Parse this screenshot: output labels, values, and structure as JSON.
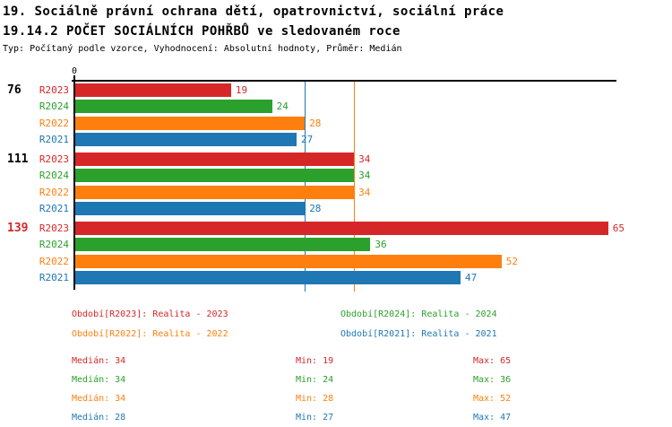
{
  "header": {
    "title_line1": "19. Sociálně právní ochrana dětí, opatrovnictví, sociální práce",
    "title_line2": "19.14.2 POČET SOCIÁLNÍCH POHŘBŮ ve sledovaném roce",
    "subtitle": "Typ: Počítaný podle vzorce, Vyhodnocení: Absolutní hodnoty, Průměr: Medián"
  },
  "colors": {
    "series": {
      "R2023": "#d62728",
      "R2024": "#2ca02c",
      "R2022": "#ff7f0e",
      "R2021": "#1f77b4"
    },
    "axis": "#000000",
    "background": "#ffffff"
  },
  "chart_data": {
    "type": "bar",
    "orientation": "horizontal-grouped",
    "title": "19.14.2 POČET SOCIÁLNÍCH POHŘBŮ ve sledovaném roce",
    "x_axis": {
      "zero_label": "0",
      "min": 0,
      "max": 66,
      "grid": false
    },
    "legend_position": "bottom",
    "value_labels": true,
    "series_order": [
      "R2023",
      "R2024",
      "R2022",
      "R2021"
    ],
    "groups": [
      {
        "group_label": "76",
        "group_label_color": "#000000",
        "bars": [
          {
            "series": "R2023",
            "value": 19
          },
          {
            "series": "R2024",
            "value": 24
          },
          {
            "series": "R2022",
            "value": 28
          },
          {
            "series": "R2021",
            "value": 27
          }
        ]
      },
      {
        "group_label": "111",
        "group_label_color": "#000000",
        "bars": [
          {
            "series": "R2023",
            "value": 34
          },
          {
            "series": "R2024",
            "value": 34
          },
          {
            "series": "R2022",
            "value": 34
          },
          {
            "series": "R2021",
            "value": 28
          }
        ]
      },
      {
        "group_label": "139",
        "group_label_color": "#d62728",
        "bars": [
          {
            "series": "R2023",
            "value": 65
          },
          {
            "series": "R2024",
            "value": 36
          },
          {
            "series": "R2022",
            "value": 52
          },
          {
            "series": "R2021",
            "value": 47
          }
        ]
      }
    ],
    "reference_lines": [
      {
        "series": "R2021",
        "value": 28,
        "color": "#1f77b4"
      },
      {
        "series": "R2022",
        "value": 34,
        "color": "#ff7f0e"
      }
    ]
  },
  "legend": {
    "items": [
      {
        "series": "R2023",
        "text": "Období[R2023]: Realita - 2023",
        "color": "#d62728",
        "col": 0,
        "row": 0
      },
      {
        "series": "R2024",
        "text": "Období[R2024]: Realita - 2024",
        "color": "#2ca02c",
        "col": 1,
        "row": 0
      },
      {
        "series": "R2022",
        "text": "Období[R2022]: Realita - 2022",
        "color": "#ff7f0e",
        "col": 0,
        "row": 1
      },
      {
        "series": "R2021",
        "text": "Období[R2021]: Realita - 2021",
        "color": "#1f77b4",
        "col": 1,
        "row": 1
      }
    ]
  },
  "stats": {
    "labels": {
      "median": "Medián",
      "min": "Min",
      "max": "Max"
    },
    "rows": [
      {
        "series": "R2023",
        "color": "#d62728",
        "median": 34,
        "min": 19,
        "max": 65
      },
      {
        "series": "R2024",
        "color": "#2ca02c",
        "median": 34,
        "min": 24,
        "max": 36
      },
      {
        "series": "R2022",
        "color": "#ff7f0e",
        "median": 34,
        "min": 28,
        "max": 52
      },
      {
        "series": "R2021",
        "color": "#1f77b4",
        "median": 28,
        "min": 27,
        "max": 47
      }
    ]
  }
}
